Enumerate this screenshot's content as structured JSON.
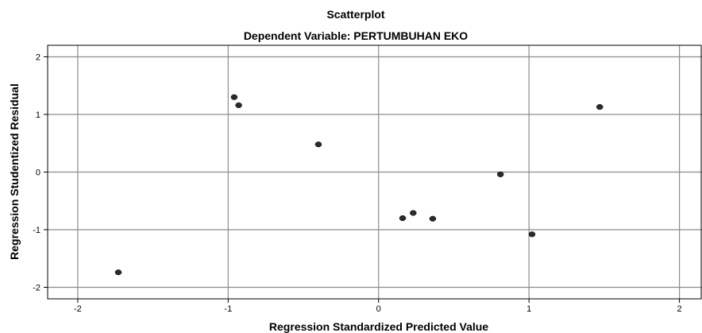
{
  "chart_data": {
    "type": "scatter",
    "title": "Scatterplot",
    "subtitle": "Dependent Variable: PERTUMBUHAN EKO",
    "xlabel": "Regression Standardized Predicted Value",
    "ylabel": "Regression Studentized Residual",
    "xlim": [
      -2.2,
      2.15
    ],
    "ylim": [
      -2.2,
      2.2
    ],
    "xticks": [
      -2,
      -1,
      0,
      1,
      2
    ],
    "yticks": [
      2,
      1,
      0,
      -1,
      -2
    ],
    "grid": true,
    "points": [
      {
        "x": -1.73,
        "y": -1.74
      },
      {
        "x": -0.96,
        "y": 1.3
      },
      {
        "x": -0.93,
        "y": 1.16
      },
      {
        "x": -0.4,
        "y": 0.48
      },
      {
        "x": 0.16,
        "y": -0.8
      },
      {
        "x": 0.23,
        "y": -0.71
      },
      {
        "x": 0.36,
        "y": -0.81
      },
      {
        "x": 0.81,
        "y": -0.04
      },
      {
        "x": 1.02,
        "y": -1.08
      },
      {
        "x": 1.47,
        "y": 1.13
      }
    ]
  }
}
